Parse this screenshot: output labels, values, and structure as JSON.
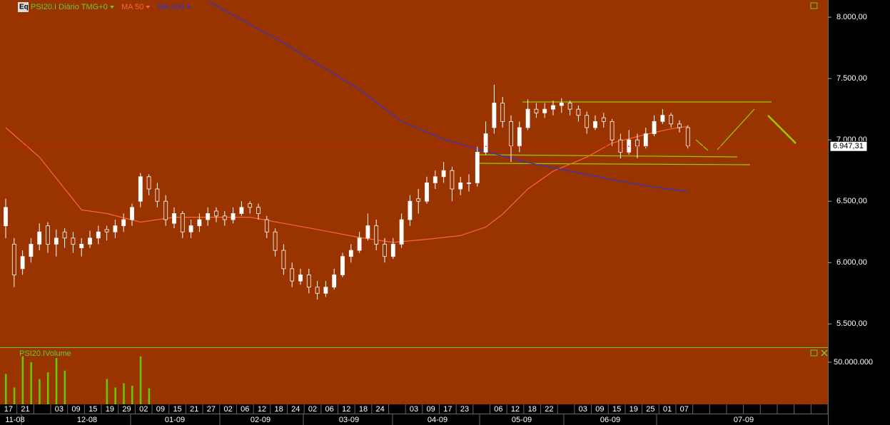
{
  "chart_data": {
    "type": "candlestick",
    "title": "PSI20.I Diário TMG+0",
    "icon_label": "Eq",
    "up_color": "#ffffff",
    "down_color": "#993300",
    "ylim": [
      5310,
      8140
    ],
    "yticks": [
      {
        "value": 5500,
        "label": "5.500,00"
      },
      {
        "value": 6000,
        "label": "6.000,00"
      },
      {
        "value": 6500,
        "label": "6.500,00"
      },
      {
        "value": 7000,
        "label": "7.000,00"
      },
      {
        "value": 7500,
        "label": "7.500,00"
      },
      {
        "value": 8000,
        "label": "8.000,00"
      }
    ],
    "last_price": {
      "value": 6947.31,
      "label": "6.947,31",
      "color": "#ff0000"
    },
    "candles": [
      [
        6300,
        6520,
        6200,
        6450
      ],
      [
        6150,
        6200,
        5800,
        5900
      ],
      [
        5950,
        6100,
        5900,
        6050
      ],
      [
        6050,
        6200,
        6000,
        6150
      ],
      [
        6150,
        6320,
        6100,
        6250
      ],
      [
        6300,
        6330,
        6080,
        6150
      ],
      [
        6150,
        6270,
        6050,
        6200
      ],
      [
        6250,
        6280,
        6120,
        6200
      ],
      [
        6200,
        6250,
        6080,
        6150
      ],
      [
        6120,
        6200,
        6050,
        6150
      ],
      [
        6150,
        6260,
        6120,
        6200
      ],
      [
        6200,
        6300,
        6150,
        6250
      ],
      [
        6270,
        6300,
        6180,
        6250
      ],
      [
        6250,
        6350,
        6200,
        6300
      ],
      [
        6300,
        6400,
        6250,
        6350
      ],
      [
        6350,
        6480,
        6300,
        6450
      ],
      [
        6500,
        6730,
        6450,
        6700
      ],
      [
        6700,
        6720,
        6550,
        6600
      ],
      [
        6600,
        6650,
        6450,
        6500
      ],
      [
        6500,
        6550,
        6300,
        6350
      ],
      [
        6320,
        6450,
        6280,
        6400
      ],
      [
        6400,
        6420,
        6200,
        6250
      ],
      [
        6250,
        6350,
        6200,
        6300
      ],
      [
        6300,
        6400,
        6250,
        6350
      ],
      [
        6350,
        6450,
        6300,
        6400
      ],
      [
        6420,
        6450,
        6330,
        6380
      ],
      [
        6380,
        6420,
        6300,
        6350
      ],
      [
        6350,
        6450,
        6320,
        6400
      ],
      [
        6400,
        6500,
        6380,
        6450
      ],
      [
        6480,
        6500,
        6400,
        6450
      ],
      [
        6450,
        6480,
        6350,
        6400
      ],
      [
        6350,
        6380,
        6200,
        6250
      ],
      [
        6250,
        6280,
        6050,
        6100
      ],
      [
        6100,
        6150,
        5900,
        5950
      ],
      [
        5950,
        6000,
        5800,
        5850
      ],
      [
        5850,
        5950,
        5820,
        5900
      ],
      [
        5900,
        5950,
        5750,
        5800
      ],
      [
        5800,
        5850,
        5700,
        5750
      ],
      [
        5750,
        5850,
        5720,
        5800
      ],
      [
        5800,
        5950,
        5780,
        5900
      ],
      [
        5900,
        6080,
        5880,
        6050
      ],
      [
        6050,
        6150,
        6000,
        6100
      ],
      [
        6100,
        6250,
        6080,
        6200
      ],
      [
        6200,
        6400,
        6180,
        6300
      ],
      [
        6300,
        6350,
        6100,
        6150
      ],
      [
        6150,
        6200,
        6000,
        6050
      ],
      [
        6050,
        6200,
        6030,
        6150
      ],
      [
        6150,
        6400,
        6120,
        6350
      ],
      [
        6350,
        6550,
        6300,
        6500
      ],
      [
        6520,
        6600,
        6400,
        6500
      ],
      [
        6500,
        6700,
        6480,
        6650
      ],
      [
        6650,
        6750,
        6600,
        6700
      ],
      [
        6700,
        6820,
        6650,
        6750
      ],
      [
        6750,
        6780,
        6500,
        6600
      ],
      [
        6600,
        6700,
        6550,
        6650
      ],
      [
        6650,
        6720,
        6580,
        6650
      ],
      [
        6650,
        6950,
        6620,
        6900
      ],
      [
        6900,
        7150,
        6880,
        7050
      ],
      [
        7100,
        7450,
        7050,
        7300
      ],
      [
        7300,
        7350,
        7100,
        7150
      ],
      [
        7150,
        7200,
        6820,
        6950
      ],
      [
        6950,
        7150,
        6900,
        7100
      ],
      [
        7100,
        7330,
        7080,
        7250
      ],
      [
        7250,
        7300,
        7180,
        7220
      ],
      [
        7220,
        7300,
        7180,
        7250
      ],
      [
        7250,
        7320,
        7200,
        7280
      ],
      [
        7280,
        7340,
        7220,
        7300
      ],
      [
        7300,
        7320,
        7200,
        7250
      ],
      [
        7250,
        7280,
        7150,
        7200
      ],
      [
        7200,
        7230,
        7050,
        7100
      ],
      [
        7100,
        7200,
        7080,
        7150
      ],
      [
        7180,
        7220,
        7100,
        7150
      ],
      [
        7150,
        7170,
        6950,
        7000
      ],
      [
        7000,
        7050,
        6850,
        6900
      ],
      [
        6900,
        7080,
        6880,
        7000
      ],
      [
        7000,
        7050,
        6850,
        6950
      ],
      [
        6950,
        7100,
        6930,
        7050
      ],
      [
        7050,
        7200,
        7030,
        7150
      ],
      [
        7150,
        7250,
        7130,
        7200
      ],
      [
        7200,
        7220,
        7100,
        7130
      ],
      [
        7130,
        7160,
        7060,
        7100
      ],
      [
        7100,
        7120,
        6930,
        6950
      ]
    ],
    "series": [
      {
        "name": "MA 50",
        "color": "#ff6633",
        "x": [
          0,
          4,
          9,
          12,
          16,
          20,
          25,
          29,
          33,
          37,
          42,
          46,
          50,
          54,
          57,
          59,
          62,
          65,
          69,
          72,
          76,
          79,
          81
        ],
        "values": [
          7100,
          6860,
          6430,
          6400,
          6330,
          6370,
          6370,
          6370,
          6320,
          6270,
          6205,
          6165,
          6190,
          6220,
          6290,
          6395,
          6600,
          6745,
          6860,
          6975,
          7045,
          7090,
          7110
        ]
      },
      {
        "name": "MA 200",
        "color": "#3333cc",
        "x": [
          24,
          33,
          42,
          47,
          52,
          57,
          62,
          67,
          72,
          77,
          81
        ],
        "values": [
          8130,
          7790,
          7410,
          7150,
          7005,
          6905,
          6815,
          6745,
          6675,
          6615,
          6580
        ]
      }
    ],
    "categories": [
      "17",
      "21",
      null,
      "03",
      "09",
      "15",
      "19",
      "29",
      "02",
      "09",
      "15",
      "21",
      "27",
      "02",
      "06",
      "12",
      "18",
      "24",
      "02",
      "06",
      "12",
      "18",
      "24",
      null,
      "03",
      "09",
      "17",
      "23",
      null,
      "06",
      "12",
      "18",
      "22",
      null,
      "03",
      "09",
      "15",
      "19",
      "25",
      "01",
      "07",
      null,
      null,
      null,
      null,
      null,
      null,
      null,
      null
    ],
    "months": [
      "11-08",
      "12-08",
      "01-09",
      "02-09",
      "03-09",
      "04-09",
      "05-09",
      "06-09",
      "07-09"
    ],
    "volume": {
      "title": "PSI20.IVolume",
      "color": "#66cc00",
      "ylim": [
        0,
        66000000
      ],
      "yticks": [
        {
          "value": 50000000,
          "label": "50.000.000"
        }
      ],
      "values": [
        36000000,
        20000000,
        57000000,
        50000000,
        30000000,
        38000000,
        55000000,
        40000000,
        null,
        null,
        null,
        null,
        30000000,
        20000000,
        25000000,
        22000000,
        57000000,
        19000000,
        null,
        null,
        null,
        null,
        null,
        null,
        null,
        null,
        null,
        null,
        null,
        null,
        null,
        null,
        null,
        null,
        null,
        null,
        null,
        null,
        null,
        null,
        null,
        null,
        null,
        null,
        null,
        null,
        null,
        null,
        null,
        null,
        null,
        null,
        null,
        null,
        null,
        null,
        null,
        null,
        null,
        null,
        null,
        null,
        null,
        null,
        null,
        null,
        null,
        null,
        null,
        null,
        null,
        null,
        null,
        null,
        null,
        null,
        null,
        null,
        null,
        null,
        null,
        null
      ]
    }
  }
}
